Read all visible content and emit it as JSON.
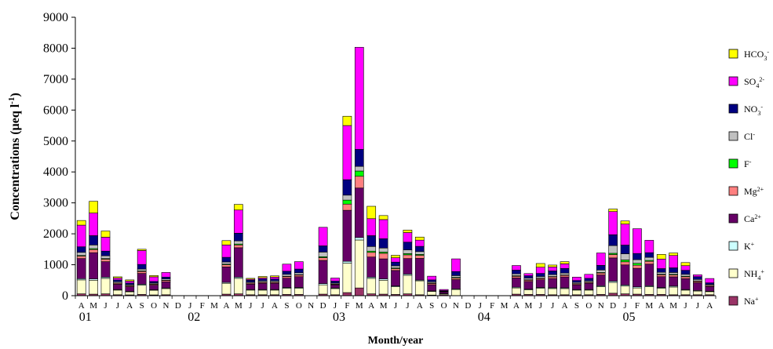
{
  "chart_data": {
    "type": "bar",
    "stacked": true,
    "ylabel": "Concentrations",
    "ylabel_unit": "(µeq l-1)",
    "ylabel_superscript": "-1",
    "xlabel": "Month/year",
    "ylim": [
      0,
      9000
    ],
    "yticks": [
      0,
      1000,
      2000,
      3000,
      4000,
      5000,
      6000,
      7000,
      8000,
      9000
    ],
    "months": [
      "A",
      "M",
      "J",
      "J",
      "A",
      "S",
      "O",
      "N",
      "D",
      "J",
      "F",
      "M",
      "A",
      "M",
      "J",
      "J",
      "A",
      "S",
      "O",
      "N",
      "D",
      "J",
      "F",
      "M",
      "A",
      "M",
      "J",
      "J",
      "A",
      "S",
      "O",
      "N",
      "D",
      "J",
      "F",
      "M",
      "A",
      "M",
      "J",
      "J",
      "A",
      "S",
      "O",
      "N",
      "D",
      "J",
      "F",
      "M",
      "A",
      "M",
      "J",
      "J",
      "A"
    ],
    "year_labels": [
      {
        "index": 0,
        "label": "01"
      },
      {
        "index": 9,
        "label": "02"
      },
      {
        "index": 21,
        "label": "03"
      },
      {
        "index": 33,
        "label": "04"
      },
      {
        "index": 45,
        "label": "05"
      }
    ],
    "legend_position": "right",
    "series": [
      {
        "name": "Na+",
        "base": "Na",
        "sup": "+",
        "sub": "",
        "color": "#993366",
        "values": [
          60,
          50,
          60,
          30,
          25,
          40,
          25,
          30,
          null,
          null,
          null,
          null,
          50,
          60,
          30,
          30,
          30,
          40,
          40,
          null,
          50,
          30,
          100,
          250,
          60,
          50,
          40,
          60,
          30,
          20,
          30,
          null,
          null,
          null,
          null,
          null,
          50,
          40,
          40,
          30,
          30,
          30,
          30,
          40,
          80,
          60,
          50,
          40,
          40,
          30,
          30,
          30,
          30
        ]
      },
      {
        "name": "NH4+",
        "base": "NH",
        "sup": "+",
        "sub": "4",
        "color": "#ffffcc",
        "values": [
          450,
          450,
          500,
          150,
          100,
          300,
          150,
          200,
          null,
          null,
          null,
          null,
          350,
          500,
          150,
          150,
          150,
          200,
          200,
          null,
          300,
          200,
          950,
          1550,
          500,
          450,
          250,
          600,
          450,
          120,
          30,
          200,
          null,
          null,
          null,
          null,
          200,
          150,
          200,
          200,
          200,
          150,
          150,
          250,
          350,
          250,
          200,
          250,
          200,
          250,
          150,
          120,
          100
        ]
      },
      {
        "name": "K+",
        "base": "K",
        "sup": "+",
        "sub": "",
        "color": "#ccffff",
        "values": [
          40,
          40,
          40,
          20,
          15,
          30,
          15,
          20,
          null,
          null,
          null,
          null,
          30,
          40,
          20,
          20,
          20,
          25,
          25,
          null,
          40,
          20,
          60,
          80,
          40,
          40,
          25,
          40,
          25,
          15,
          10,
          20,
          null,
          null,
          null,
          null,
          25,
          20,
          25,
          25,
          25,
          20,
          20,
          30,
          40,
          35,
          35,
          30,
          25,
          30,
          20,
          20,
          15
        ]
      },
      {
        "name": "Ca2+",
        "base": "Ca",
        "sup": "2+",
        "sub": "",
        "color": "#660066",
        "values": [
          650,
          850,
          500,
          170,
          150,
          350,
          150,
          200,
          null,
          null,
          null,
          null,
          500,
          950,
          170,
          200,
          200,
          300,
          350,
          null,
          750,
          100,
          1650,
          1600,
          650,
          650,
          500,
          500,
          700,
          200,
          50,
          300,
          null,
          null,
          null,
          null,
          300,
          250,
          250,
          300,
          350,
          150,
          200,
          350,
          750,
          650,
          600,
          700,
          350,
          300,
          350,
          250,
          150
        ]
      },
      {
        "name": "Mg2+",
        "base": "Mg",
        "sup": "2+",
        "sub": "",
        "color": "#ff8080",
        "values": [
          80,
          100,
          80,
          30,
          30,
          60,
          30,
          40,
          null,
          null,
          null,
          null,
          70,
          90,
          30,
          30,
          30,
          50,
          50,
          null,
          90,
          20,
          200,
          380,
          150,
          180,
          60,
          120,
          100,
          40,
          10,
          50,
          null,
          null,
          null,
          null,
          50,
          40,
          40,
          50,
          50,
          30,
          30,
          60,
          110,
          100,
          100,
          90,
          60,
          60,
          60,
          40,
          30
        ]
      },
      {
        "name": "F-",
        "base": "F",
        "sup": "-",
        "sub": "",
        "color": "#00ff00",
        "values": [
          20,
          30,
          20,
          10,
          10,
          20,
          10,
          10,
          null,
          null,
          null,
          null,
          20,
          30,
          10,
          10,
          10,
          15,
          15,
          null,
          30,
          10,
          130,
          170,
          40,
          40,
          20,
          40,
          30,
          15,
          5,
          20,
          null,
          null,
          null,
          null,
          20,
          15,
          15,
          15,
          15,
          10,
          10,
          20,
          40,
          60,
          60,
          30,
          20,
          20,
          20,
          15,
          10
        ]
      },
      {
        "name": "Cl-",
        "base": "Cl",
        "sup": "-",
        "sub": "",
        "color": "#c0c0c0",
        "values": [
          100,
          120,
          90,
          40,
          30,
          60,
          30,
          40,
          null,
          null,
          null,
          null,
          70,
          100,
          30,
          40,
          40,
          60,
          60,
          null,
          150,
          30,
          160,
          150,
          150,
          130,
          70,
          120,
          90,
          40,
          10,
          60,
          null,
          null,
          null,
          null,
          60,
          50,
          50,
          60,
          60,
          40,
          40,
          80,
          250,
          200,
          120,
          100,
          60,
          60,
          60,
          50,
          30
        ]
      },
      {
        "name": "NO3-",
        "base": "NO",
        "sup": "-",
        "sub": "3",
        "color": "#000080",
        "values": [
          180,
          300,
          150,
          60,
          50,
          150,
          50,
          60,
          null,
          null,
          null,
          null,
          150,
          250,
          60,
          60,
          60,
          100,
          120,
          null,
          200,
          60,
          500,
          550,
          350,
          300,
          120,
          250,
          170,
          60,
          20,
          130,
          null,
          null,
          null,
          null,
          120,
          80,
          100,
          120,
          150,
          60,
          80,
          150,
          350,
          280,
          200,
          150,
          120,
          150,
          130,
          90,
          50
        ]
      },
      {
        "name": "SO42-",
        "base": "SO",
        "sup": "2-",
        "sub": "4",
        "color": "#ff00ff",
        "values": [
          700,
          730,
          450,
          60,
          60,
          450,
          150,
          150,
          null,
          null,
          null,
          null,
          400,
          750,
          30,
          40,
          60,
          230,
          240,
          null,
          600,
          100,
          1750,
          3300,
          550,
          620,
          140,
          310,
          200,
          120,
          35,
          410,
          null,
          null,
          null,
          null,
          150,
          70,
          200,
          130,
          150,
          110,
          130,
          400,
          750,
          680,
          800,
          400,
          310,
          400,
          150,
          60,
          140
        ]
      },
      {
        "name": "HCO3-",
        "base": "HCO",
        "sup": "-",
        "sub": "3",
        "color": "#ffff00",
        "values": [
          150,
          380,
          200,
          40,
          40,
          40,
          40,
          null,
          null,
          null,
          null,
          null,
          140,
          180,
          30,
          40,
          40,
          null,
          null,
          null,
          null,
          null,
          300,
          null,
          400,
          130,
          80,
          80,
          100,
          null,
          null,
          null,
          null,
          null,
          null,
          null,
          null,
          null,
          120,
          60,
          70,
          null,
          null,
          null,
          80,
          100,
          null,
          null,
          150,
          80,
          100,
          null,
          null
        ]
      }
    ]
  }
}
